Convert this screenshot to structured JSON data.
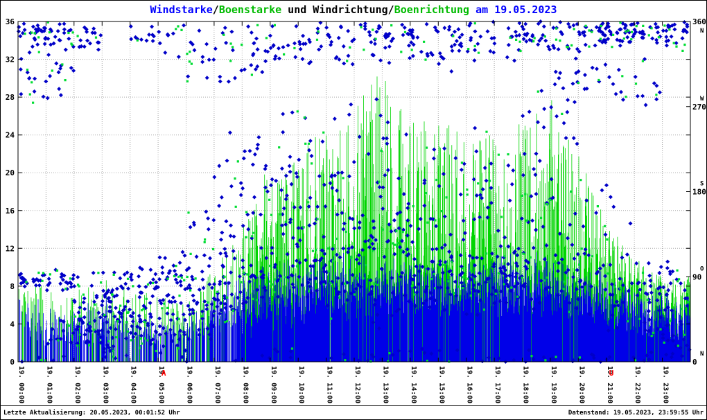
{
  "title": {
    "segments": [
      {
        "text": "Windstarke",
        "color": "#0000ff"
      },
      {
        "text": "/",
        "color": "#000000"
      },
      {
        "text": "Boenstarke",
        "color": "#00bb00"
      },
      {
        "text": " und Windrichtung/",
        "color": "#000000"
      },
      {
        "text": "Boenrichtung",
        "color": "#00bb00"
      },
      {
        "text": " am 19.05.2023",
        "color": "#0000ff"
      }
    ]
  },
  "footer": {
    "left": "Letzte Aktualisierung: 20.05.2023, 00:01:52 Uhr",
    "right": "Datenstand: 19.05.2023, 23:59:55 Uhr"
  },
  "colors": {
    "wind": "#0000e8",
    "gust": "#00d500",
    "wind_dir": "#0000c8",
    "gust_dir": "#00dd33",
    "grid": "#a8a8a8",
    "frame": "#000000",
    "sun": "#ff0000"
  },
  "sun_marks": {
    "sunrise": {
      "label": "A",
      "hour": 5.12
    },
    "sunset": {
      "label": "U",
      "hour": 21.1
    }
  },
  "chart_data": {
    "type": "mixed",
    "title": "Windstarke/Boenstarke und Windrichtung/Boenrichtung am 19.05.2023",
    "x_range_hours": [
      0,
      24
    ],
    "x_tick_labels": [
      "19. 00:00",
      "19. 01:00",
      "19. 02:00",
      "19. 03:00",
      "19. 04:00",
      "19. 05:00",
      "19. 06:00",
      "19. 07:00",
      "19. 08:00",
      "19. 09:00",
      "19. 10:00",
      "19. 11:00",
      "19. 12:00",
      "19. 13:00",
      "19. 14:00",
      "19. 15:00",
      "19. 16:00",
      "19. 17:00",
      "19. 18:00",
      "19. 19:00",
      "19. 20:00",
      "19. 21:00",
      "19. 22:00",
      "19. 23:00"
    ],
    "y_left": {
      "min": 0,
      "max": 36,
      "tick_step": 4
    },
    "y_right": {
      "min": 0,
      "max": 360,
      "ticks": [
        0,
        90,
        180,
        270,
        360
      ],
      "compass": [
        "N",
        "O",
        "S",
        "W",
        "N"
      ]
    },
    "series": [
      {
        "name": "Windstarke",
        "style": "impulse",
        "color_key": "wind",
        "axis": "left"
      },
      {
        "name": "Boenstarke",
        "style": "impulse",
        "color_key": "gust",
        "axis": "left"
      },
      {
        "name": "Windrichtung",
        "style": "scatter-diamond",
        "color_key": "wind_dir",
        "axis": "right"
      },
      {
        "name": "Boenrichtung",
        "style": "scatter-square",
        "color_key": "gust_dir",
        "axis": "right"
      }
    ],
    "hourly": {
      "wind_lo": [
        2,
        1,
        1,
        2,
        1,
        1,
        1,
        2,
        2,
        3,
        3,
        4,
        4,
        4,
        4,
        4,
        4,
        4,
        4,
        4,
        3,
        3,
        2,
        2
      ],
      "wind_hi": [
        9,
        6,
        6,
        7,
        6,
        5,
        5,
        8,
        10,
        11,
        11,
        12,
        12,
        12,
        12,
        12,
        11,
        12,
        12,
        12,
        11,
        10,
        9,
        8
      ],
      "gust_max": [
        9,
        8,
        8,
        9,
        8,
        7,
        6,
        10,
        16,
        21,
        22,
        25,
        27,
        31,
        26,
        26,
        24,
        24,
        26,
        28,
        22,
        15,
        11,
        9
      ],
      "dir_clusters": [
        [
          [
            87,
            6,
            0.4
          ],
          [
            350,
            10,
            0.35
          ],
          [
            305,
            20,
            0.25
          ]
        ],
        [
          [
            85,
            8,
            0.35
          ],
          [
            345,
            12,
            0.3
          ],
          [
            30,
            18,
            0.2
          ],
          [
            310,
            20,
            0.15
          ]
        ],
        [
          [
            55,
            18,
            0.35
          ],
          [
            30,
            12,
            0.25
          ],
          [
            85,
            8,
            0.2
          ],
          [
            345,
            12,
            0.2
          ]
        ],
        [
          [
            55,
            12,
            0.4
          ],
          [
            30,
            12,
            0.25
          ],
          [
            80,
            10,
            0.2
          ],
          [
            10,
            8,
            0.15
          ]
        ],
        [
          [
            55,
            18,
            0.4
          ],
          [
            25,
            12,
            0.25
          ],
          [
            85,
            10,
            0.2
          ],
          [
            350,
            10,
            0.15
          ]
        ],
        [
          [
            70,
            18,
            0.35
          ],
          [
            35,
            15,
            0.25
          ],
          [
            100,
            12,
            0.2
          ],
          [
            340,
            18,
            0.2
          ]
        ],
        [
          [
            90,
            22,
            0.35
          ],
          [
            50,
            18,
            0.25
          ],
          [
            330,
            22,
            0.2
          ],
          [
            140,
            18,
            0.2
          ]
        ],
        [
          [
            100,
            25,
            0.3
          ],
          [
            330,
            22,
            0.3
          ],
          [
            60,
            18,
            0.2
          ],
          [
            190,
            35,
            0.2
          ]
        ],
        [
          [
            120,
            35,
            0.3
          ],
          [
            330,
            25,
            0.3
          ],
          [
            80,
            20,
            0.2
          ],
          [
            220,
            40,
            0.2
          ]
        ],
        [
          [
            120,
            35,
            0.25
          ],
          [
            340,
            22,
            0.3
          ],
          [
            200,
            45,
            0.25
          ],
          [
            80,
            20,
            0.2
          ]
        ],
        [
          [
            130,
            38,
            0.3
          ],
          [
            340,
            22,
            0.25
          ],
          [
            210,
            45,
            0.25
          ],
          [
            90,
            22,
            0.2
          ]
        ],
        [
          [
            120,
            38,
            0.25
          ],
          [
            345,
            18,
            0.3
          ],
          [
            200,
            45,
            0.25
          ],
          [
            80,
            22,
            0.2
          ]
        ],
        [
          [
            110,
            38,
            0.3
          ],
          [
            345,
            18,
            0.3
          ],
          [
            200,
            55,
            0.2
          ],
          [
            70,
            22,
            0.2
          ]
        ],
        [
          [
            100,
            38,
            0.3
          ],
          [
            345,
            18,
            0.3
          ],
          [
            190,
            55,
            0.2
          ],
          [
            140,
            25,
            0.2
          ]
        ],
        [
          [
            110,
            38,
            0.3
          ],
          [
            345,
            18,
            0.3
          ],
          [
            190,
            48,
            0.2
          ],
          [
            80,
            22,
            0.2
          ]
        ],
        [
          [
            110,
            38,
            0.3
          ],
          [
            340,
            20,
            0.3
          ],
          [
            200,
            48,
            0.2
          ],
          [
            90,
            22,
            0.2
          ]
        ],
        [
          [
            100,
            32,
            0.3
          ],
          [
            345,
            18,
            0.3
          ],
          [
            180,
            48,
            0.2
          ],
          [
            90,
            22,
            0.2
          ]
        ],
        [
          [
            100,
            32,
            0.3
          ],
          [
            345,
            18,
            0.35
          ],
          [
            200,
            48,
            0.15
          ],
          [
            80,
            22,
            0.2
          ]
        ],
        [
          [
            90,
            28,
            0.3
          ],
          [
            350,
            14,
            0.4
          ],
          [
            160,
            38,
            0.15
          ],
          [
            250,
            38,
            0.15
          ]
        ],
        [
          [
            90,
            28,
            0.3
          ],
          [
            350,
            14,
            0.4
          ],
          [
            200,
            48,
            0.15
          ],
          [
            300,
            28,
            0.15
          ]
        ],
        [
          [
            90,
            28,
            0.3
          ],
          [
            350,
            13,
            0.45
          ],
          [
            310,
            22,
            0.15
          ],
          [
            180,
            38,
            0.1
          ]
        ],
        [
          [
            80,
            28,
            0.25
          ],
          [
            350,
            11,
            0.5
          ],
          [
            310,
            22,
            0.15
          ],
          [
            150,
            38,
            0.1
          ]
        ],
        [
          [
            80,
            28,
            0.3
          ],
          [
            350,
            11,
            0.45
          ],
          [
            40,
            18,
            0.15
          ],
          [
            300,
            22,
            0.1
          ]
        ],
        [
          [
            60,
            28,
            0.3
          ],
          [
            350,
            13,
            0.35
          ],
          [
            20,
            18,
            0.2
          ],
          [
            90,
            18,
            0.15
          ]
        ]
      ]
    },
    "points_per_hour": {
      "wind_dir": 62,
      "gust_dir": 15
    },
    "seed": 20230519
  }
}
